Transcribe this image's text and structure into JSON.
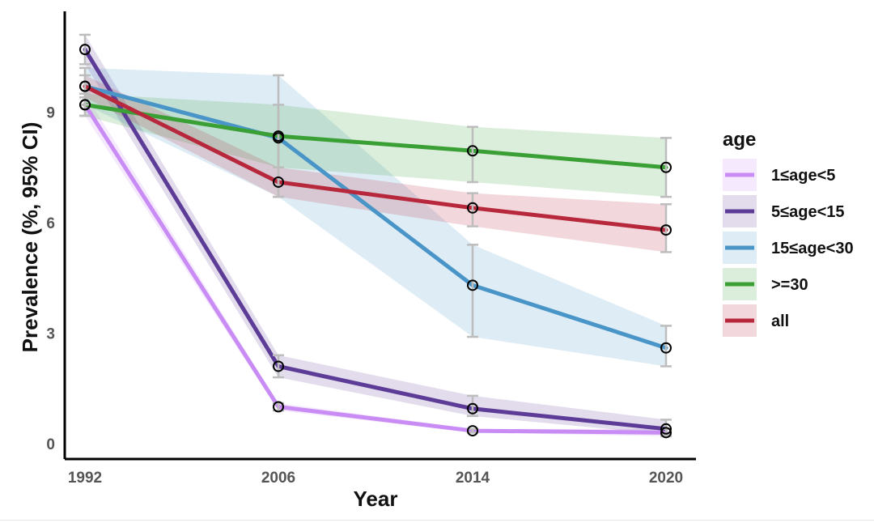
{
  "chart_data": {
    "type": "line",
    "title": "",
    "xlabel": "Year",
    "ylabel": "Prevalence (%, 95% CI)",
    "x": [
      1992,
      2006,
      2014,
      2020
    ],
    "x_tick_labels": [
      "1992",
      "2006",
      "2014",
      "2020"
    ],
    "y_ticks": [
      0,
      3,
      6,
      9
    ],
    "ylim": [
      -0.3,
      11.7
    ],
    "grid": false,
    "legend": {
      "title": "age",
      "position": "right"
    },
    "series": [
      {
        "name": "1≤age<5",
        "color": "#c98cf5",
        "values": [
          9.2,
          1.0,
          0.35,
          0.3
        ],
        "ci_lower": [
          8.9,
          0.9,
          0.3,
          0.2
        ],
        "ci_upper": [
          9.5,
          1.1,
          0.4,
          0.4
        ]
      },
      {
        "name": "5≤age<15",
        "color": "#5c3c96",
        "values": [
          10.7,
          2.1,
          0.95,
          0.4
        ],
        "ci_lower": [
          10.3,
          1.8,
          0.75,
          0.25
        ],
        "ci_upper": [
          11.1,
          2.4,
          1.3,
          0.65
        ]
      },
      {
        "name": "15≤age<30",
        "color": "#4a95c8",
        "values": [
          9.7,
          8.3,
          4.3,
          2.6
        ],
        "ci_lower": [
          9.2,
          6.7,
          2.9,
          2.1
        ],
        "ci_upper": [
          10.2,
          10.0,
          5.4,
          3.2
        ]
      },
      {
        "name": ">=30",
        "color": "#3aa035",
        "values": [
          9.2,
          8.35,
          7.95,
          7.5
        ],
        "ci_lower": [
          8.9,
          7.5,
          7.1,
          6.7
        ],
        "ci_upper": [
          9.5,
          9.2,
          8.6,
          8.3
        ]
      },
      {
        "name": "all",
        "color": "#b8283c",
        "values": [
          9.7,
          7.1,
          6.4,
          5.8
        ],
        "ci_lower": [
          9.4,
          6.7,
          5.9,
          5.2
        ],
        "ci_upper": [
          10.0,
          7.5,
          6.8,
          6.5
        ]
      }
    ]
  }
}
